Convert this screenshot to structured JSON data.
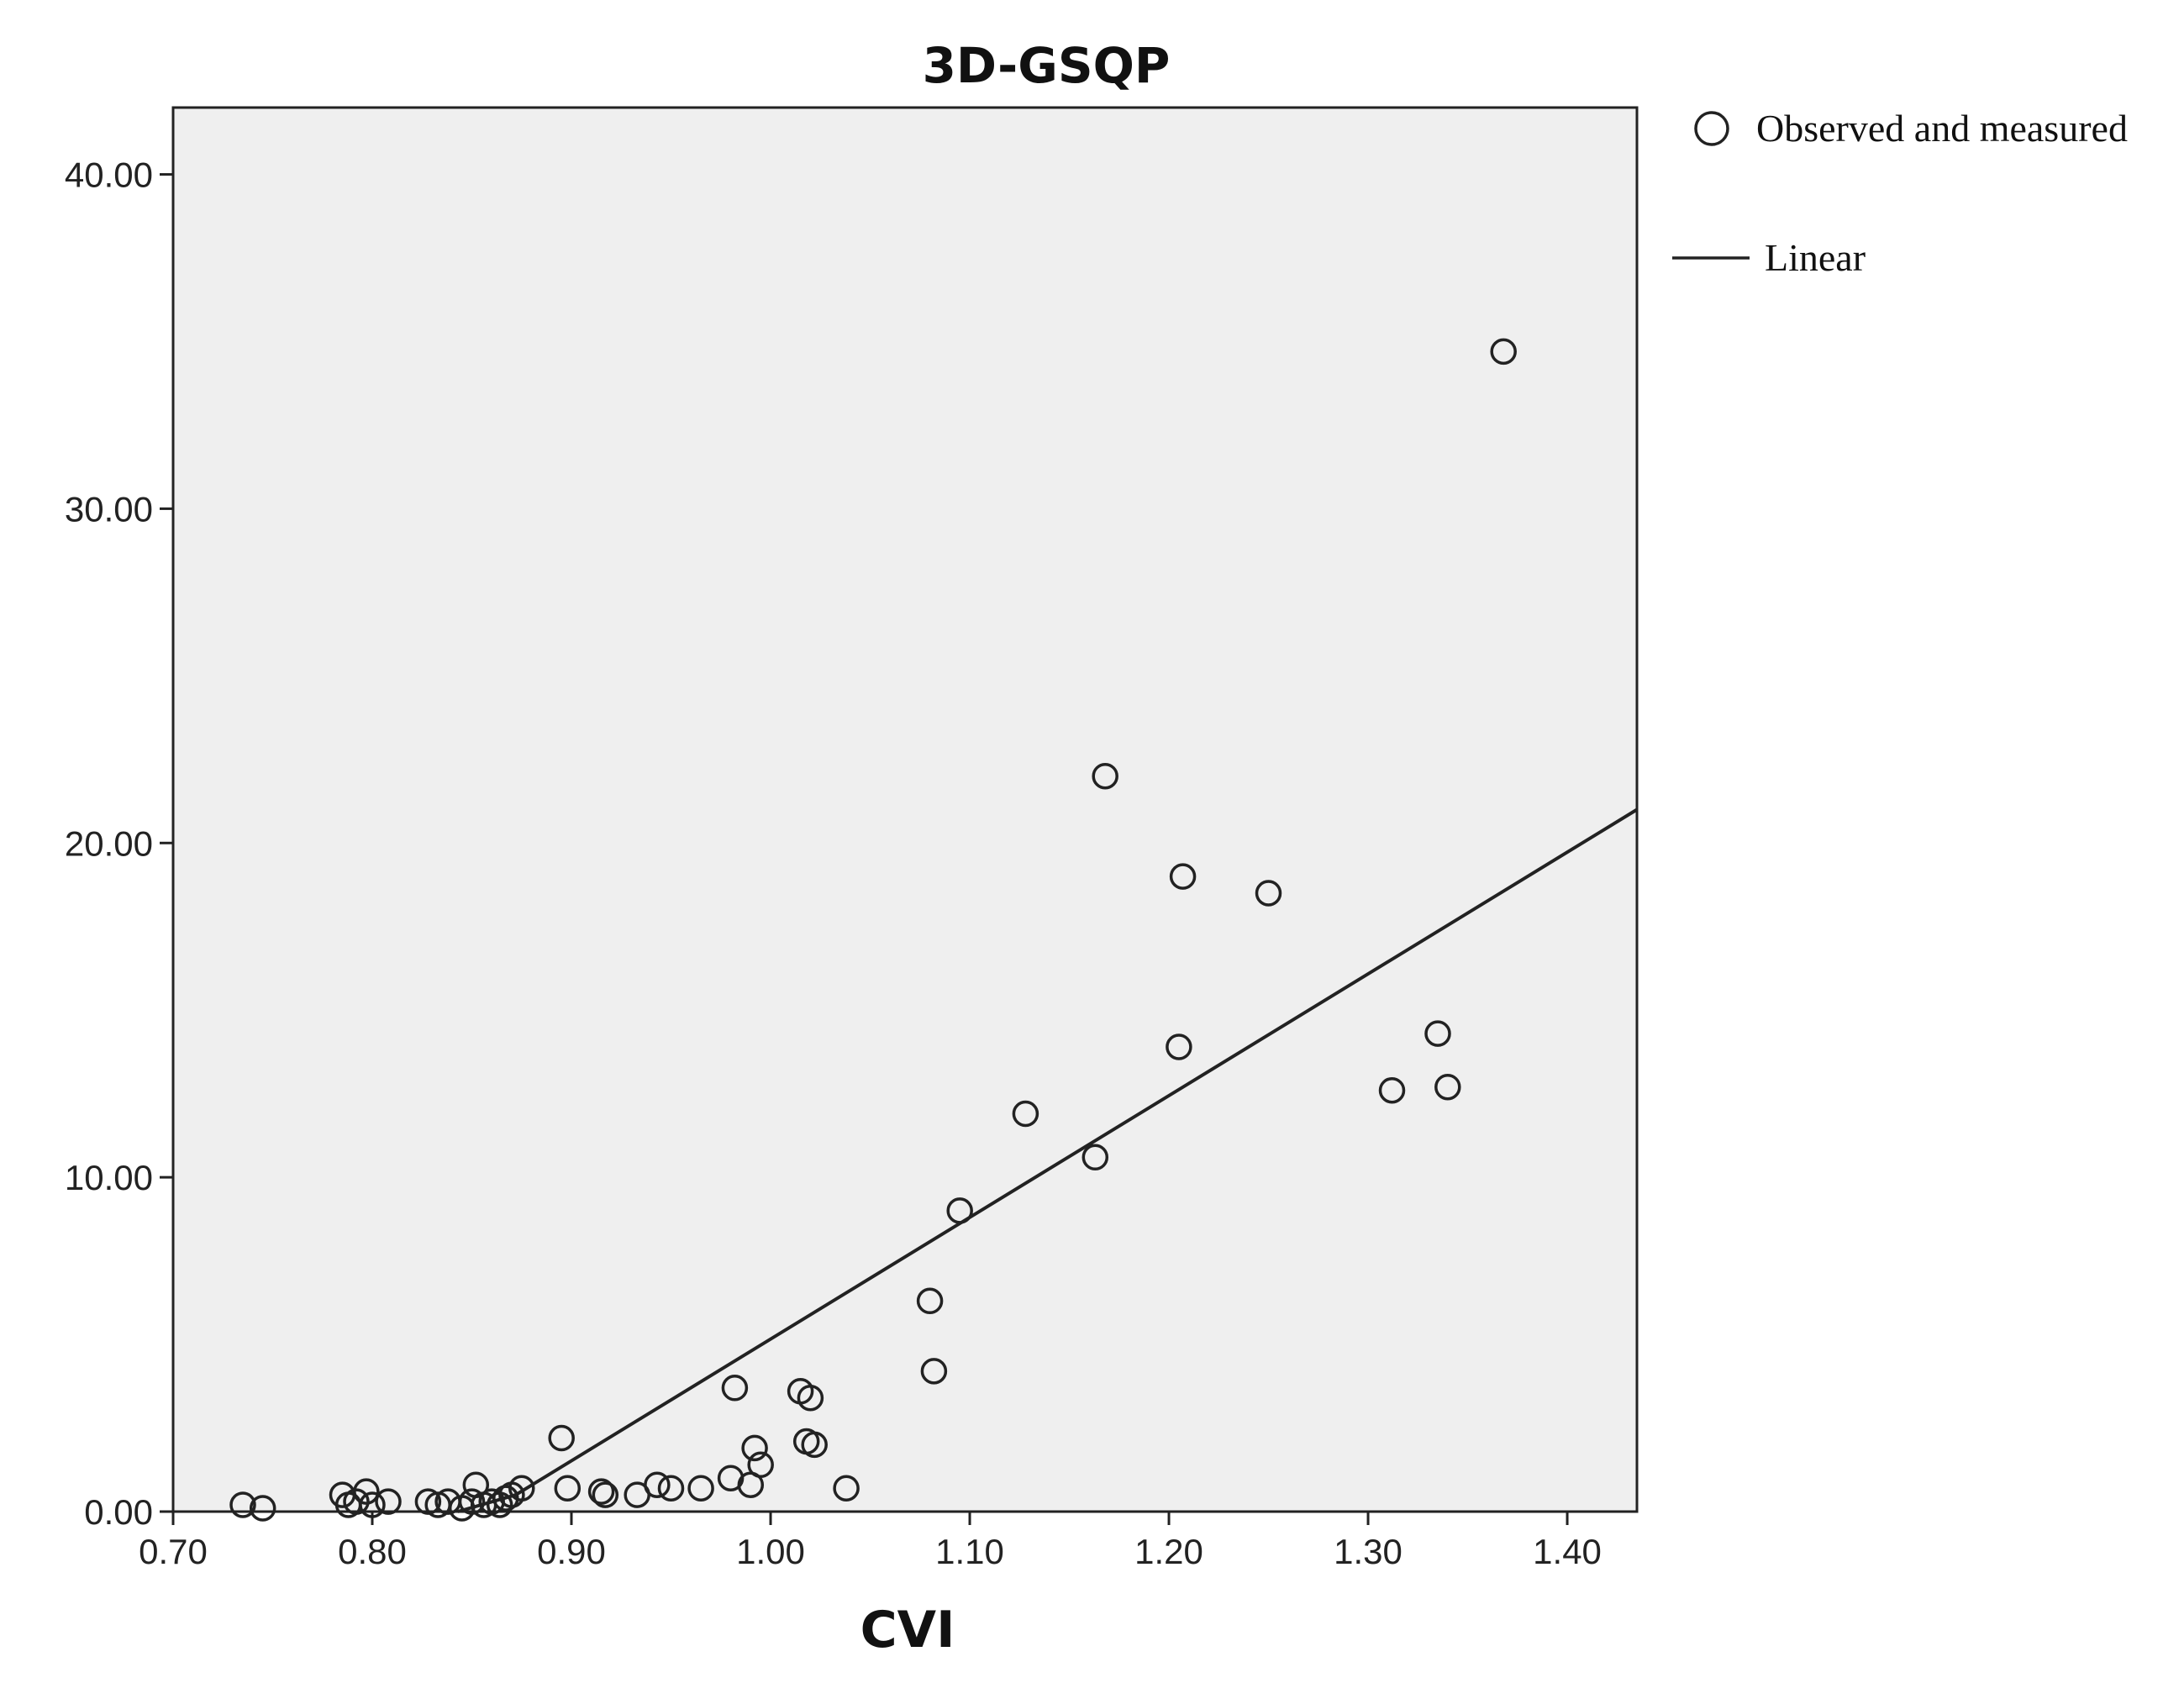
{
  "chart_data": {
    "type": "scatter",
    "title": "3D-GSQP",
    "xlabel": "CVI",
    "ylabel": "",
    "xlim": [
      0.7,
      1.435
    ],
    "ylim": [
      0,
      42
    ],
    "x_ticks": [
      "0.70",
      "0.80",
      "0.90",
      "1.00",
      "1.10",
      "1.20",
      "1.30",
      "1.40"
    ],
    "y_ticks": [
      "0.00",
      "10.00",
      "20.00",
      "30.00",
      "40.00"
    ],
    "x_tick_values": [
      0.7,
      0.8,
      0.9,
      1.0,
      1.1,
      1.2,
      1.3,
      1.4
    ],
    "y_tick_values": [
      0,
      10,
      20,
      30,
      40
    ],
    "grid": false,
    "legend_position": "top-right, outside plot",
    "legend": [
      {
        "marker": "circle",
        "label": "Observed and measured"
      },
      {
        "marker": "line",
        "label": "Linear"
      }
    ],
    "series": [
      {
        "name": "Observed and measured",
        "kind": "points",
        "x": [
          0.735,
          0.745,
          0.785,
          0.788,
          0.792,
          0.797,
          0.8,
          0.808,
          0.828,
          0.833,
          0.838,
          0.845,
          0.85,
          0.852,
          0.856,
          0.86,
          0.864,
          0.867,
          0.87,
          0.875,
          0.895,
          0.898,
          0.915,
          0.917,
          0.933,
          0.943,
          0.95,
          0.965,
          0.98,
          0.982,
          0.99,
          0.992,
          0.995,
          1.015,
          1.018,
          1.02,
          1.022,
          1.038,
          1.08,
          1.082,
          1.095,
          1.128,
          1.163,
          1.168,
          1.205,
          1.207,
          1.25,
          1.312,
          1.335,
          1.34,
          1.368
        ],
        "y": [
          0.2,
          0.1,
          0.5,
          0.2,
          0.3,
          0.6,
          0.2,
          0.3,
          0.3,
          0.2,
          0.3,
          0.1,
          0.3,
          0.8,
          0.2,
          0.3,
          0.2,
          0.4,
          0.5,
          0.7,
          2.2,
          0.7,
          0.6,
          0.5,
          0.5,
          0.8,
          0.7,
          0.7,
          1.0,
          3.7,
          0.8,
          1.9,
          1.4,
          3.6,
          2.1,
          3.4,
          2.0,
          0.7,
          6.3,
          4.2,
          9.0,
          11.9,
          10.6,
          22.0,
          13.9,
          19.0,
          18.5,
          12.6,
          14.3,
          12.7,
          34.7
        ]
      },
      {
        "name": "Linear",
        "kind": "line",
        "x": [
          0.843,
          0.872,
          1.435
        ],
        "y": [
          0.0,
          0.5,
          21.0
        ]
      }
    ]
  }
}
